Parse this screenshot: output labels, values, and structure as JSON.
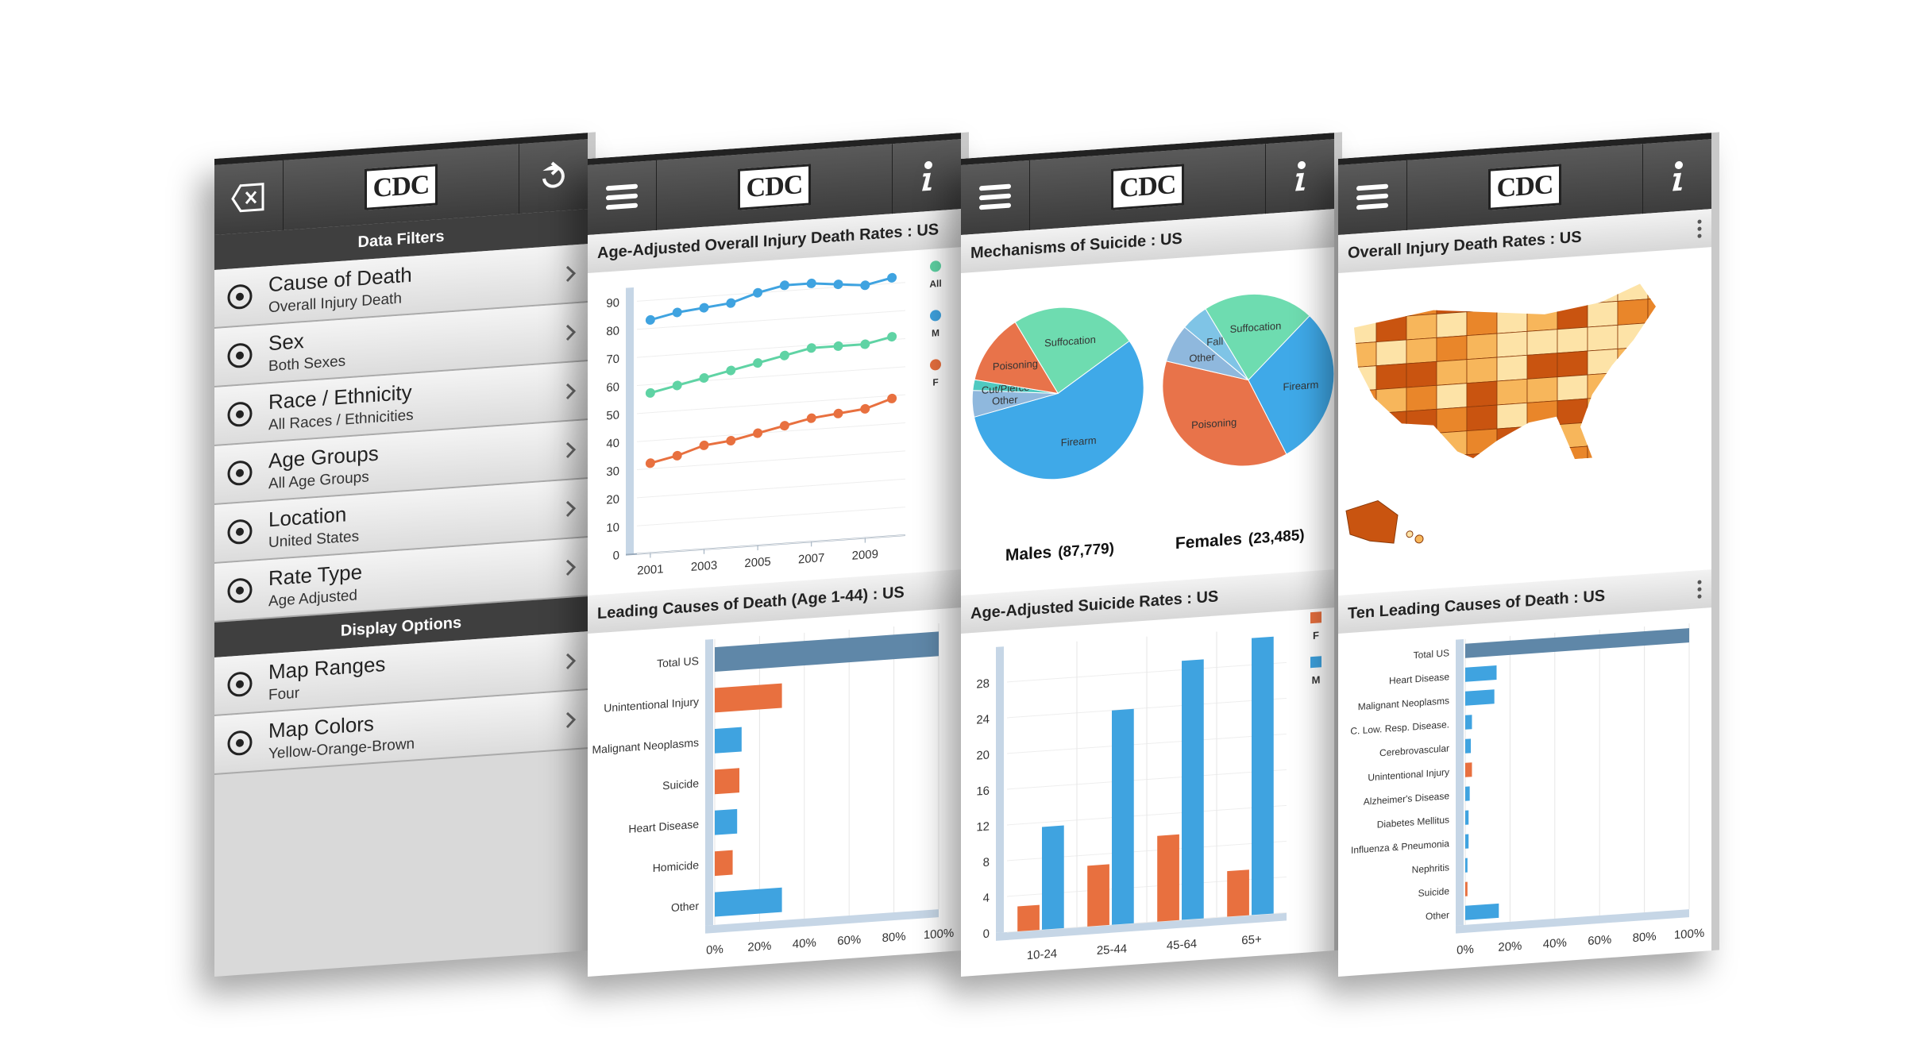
{
  "filters": {
    "logo": "CDC",
    "sections": [
      {
        "title": "Data Filters",
        "items": [
          {
            "label": "Cause of Death",
            "value": "Overall Injury Death"
          },
          {
            "label": "Sex",
            "value": "Both Sexes"
          },
          {
            "label": "Race / Ethnicity",
            "value": "All Races / Ethnicities"
          },
          {
            "label": "Age Groups",
            "value": "All Age Groups"
          },
          {
            "label": "Location",
            "value": "United States"
          },
          {
            "label": "Rate Type",
            "value": "Age Adjusted"
          }
        ]
      },
      {
        "title": "Display Options",
        "items": [
          {
            "label": "Map Ranges",
            "value": "Four"
          },
          {
            "label": "Map Colors",
            "value": "Yellow-Orange-Brown"
          }
        ]
      }
    ]
  },
  "screens": [
    {
      "logo": "CDC",
      "charts": [
        {
          "type": "line",
          "title": "Age-Adjusted Overall Injury Death Rates : US",
          "x": [
            2001,
            2002,
            2003,
            2004,
            2005,
            2006,
            2007,
            2008,
            2009,
            2010
          ],
          "xlim": [
            2000.5,
            2010.5
          ],
          "xticks": [
            2001,
            2003,
            2005,
            2007,
            2009
          ],
          "ylim": [
            0,
            95
          ],
          "yticks": [
            0,
            10,
            20,
            30,
            40,
            50,
            60,
            70,
            80,
            90
          ],
          "grid": true,
          "series": [
            {
              "name": "All",
              "color": "#5fd3a4",
              "values": [
                57,
                59,
                61,
                63,
                65,
                67,
                69,
                69,
                69,
                71
              ]
            },
            {
              "name": "M",
              "color": "#3fa3e0",
              "values": [
                83,
                85,
                86,
                87,
                90,
                92,
                92,
                91,
                90,
                92
              ]
            },
            {
              "name": "F",
              "color": "#e8703f",
              "values": [
                32,
                34,
                37,
                38,
                40,
                42,
                44,
                45,
                46,
                49
              ]
            }
          ]
        },
        {
          "type": "hbar",
          "title": "Leading Causes of Death (Age 1-44) : US",
          "categories": [
            "Total US",
            "Unintentional Injury",
            "Malignant Neoplasms",
            "Suicide",
            "Heart Disease",
            "Homicide",
            "Other"
          ],
          "values": [
            100,
            30,
            12,
            11,
            10,
            8,
            30
          ],
          "colors": [
            "#5f87a8",
            "#e8703f",
            "#3fa3e0",
            "#e8703f",
            "#3fa3e0",
            "#e8703f",
            "#3fa3e0"
          ],
          "xlim": [
            0,
            100
          ],
          "xticks": [
            {
              "value": 0,
              "label": "0%"
            },
            {
              "value": 20,
              "label": "20%"
            },
            {
              "value": 40,
              "label": "40%"
            },
            {
              "value": 60,
              "label": "60%"
            },
            {
              "value": 80,
              "label": "80%"
            },
            {
              "value": 100,
              "label": "100%"
            }
          ]
        }
      ]
    },
    {
      "logo": "CDC",
      "charts": [
        {
          "type": "pie",
          "title": "Mechanisms of Suicide : US",
          "pies": [
            {
              "name": "Males",
              "total": "(87,779)",
              "categories": [
                "Suffocation",
                "Firearm",
                "Other",
                "Cut/Pierce",
                "Poisoning"
              ],
              "values": [
                24,
                56,
                5,
                2,
                13
              ],
              "colors": [
                "#6edcb0",
                "#3fa9e8",
                "#8fb8dd",
                "#4fc9c0",
                "#e8734a"
              ]
            },
            {
              "name": "Females",
              "total": "(23,485)",
              "categories": [
                "Suffocation",
                "Firearm",
                "Poisoning",
                "Other",
                "Fall"
              ],
              "values": [
                21,
                30,
                37,
                7,
                5
              ],
              "colors": [
                "#6edcb0",
                "#3fa9e8",
                "#e8734a",
                "#8fb8dd",
                "#7fc4e6"
              ]
            }
          ]
        },
        {
          "type": "bar",
          "title": "Age-Adjusted Suicide Rates : US",
          "categories": [
            "10-24",
            "25-44",
            "45-64",
            "65+"
          ],
          "ylim": [
            0,
            32
          ],
          "yticks": [
            0,
            4,
            8,
            12,
            16,
            20,
            24,
            28
          ],
          "series": [
            {
              "name": "F",
              "color": "#e8703f",
              "values": [
                2.8,
                6.8,
                9.6,
                5.1
              ]
            },
            {
              "name": "M",
              "color": "#3fa3e0",
              "values": [
                11.5,
                24,
                29,
                31
              ]
            }
          ]
        }
      ]
    },
    {
      "logo": "CDC",
      "charts": [
        {
          "type": "map",
          "title": "Overall Injury Death Rates : US"
        },
        {
          "type": "hbar",
          "title": "Ten Leading Causes of Death : US",
          "categories": [
            "Total US",
            "Heart Disease",
            "Malignant Neoplasms",
            "C. Low. Resp. Disease.",
            "Cerebrovascular",
            "Unintentional Injury",
            "Alzheimer's Disease",
            "Diabetes Mellitus",
            "Influenza & Pneumonia",
            "Nephritis",
            "Suicide",
            "Other"
          ],
          "values": [
            100,
            14,
            13,
            3,
            2.5,
            3,
            2,
            1.5,
            1.5,
            1,
            1,
            15
          ],
          "colors": [
            "#5f87a8",
            "#3fa3e0",
            "#3fa3e0",
            "#3fa3e0",
            "#3fa3e0",
            "#e8703f",
            "#3fa3e0",
            "#3fa3e0",
            "#3fa3e0",
            "#3fa3e0",
            "#e8703f",
            "#3fa3e0"
          ],
          "xlim": [
            0,
            100
          ],
          "xticks": [
            {
              "value": 0,
              "label": "0%"
            },
            {
              "value": 20,
              "label": "20%"
            },
            {
              "value": 40,
              "label": "40%"
            },
            {
              "value": 60,
              "label": "60%"
            },
            {
              "value": 80,
              "label": "80%"
            },
            {
              "value": 100,
              "label": "100%"
            }
          ]
        }
      ]
    }
  ]
}
